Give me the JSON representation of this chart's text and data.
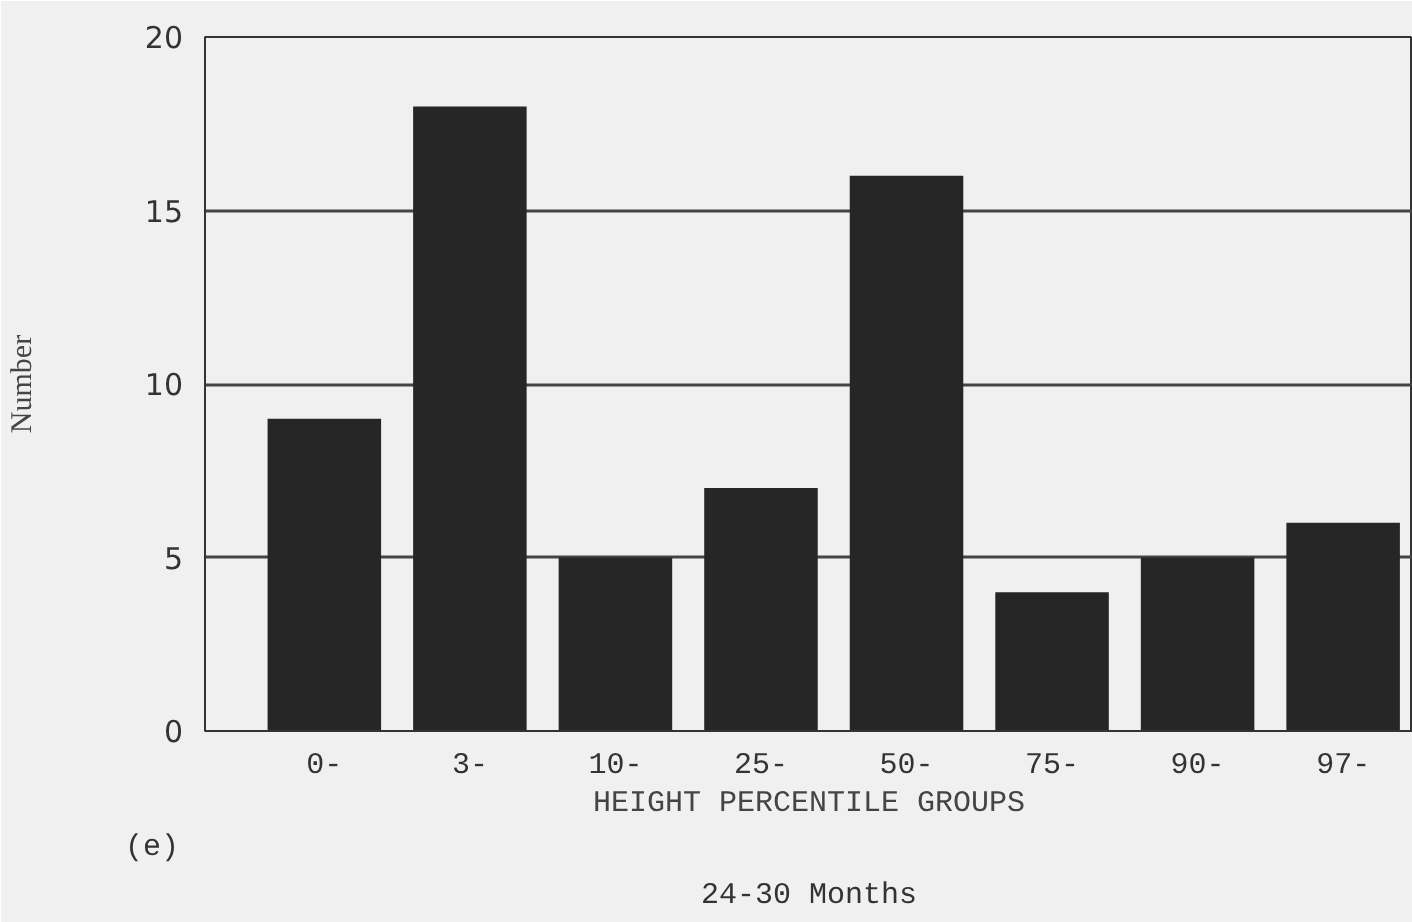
{
  "chart_data": {
    "type": "bar",
    "subtitle": "24-30 Months",
    "xlabel": "HEIGHT PERCENTILE GROUPS",
    "ylabel": "Number",
    "categories": [
      "0-",
      "3-",
      "10-",
      "25-",
      "50-",
      "75-",
      "90-",
      "97-"
    ],
    "values": [
      9,
      18,
      5,
      7,
      16,
      4,
      5,
      6
    ],
    "color": "#262626",
    "ylim": [
      0,
      20
    ],
    "yticks": [
      0,
      5,
      10,
      15,
      20
    ],
    "grid": "y",
    "annotations": [
      "(e)"
    ]
  }
}
